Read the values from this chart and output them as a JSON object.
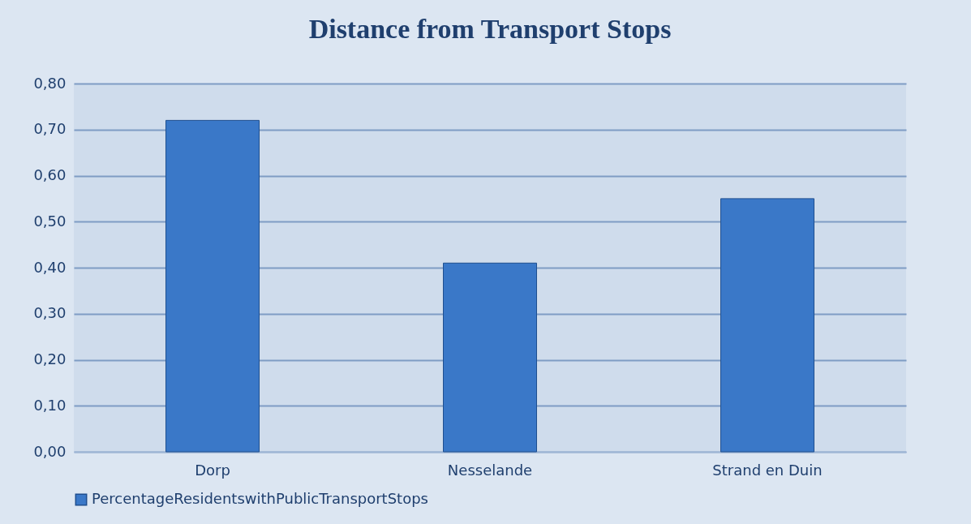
{
  "chart_data": {
    "type": "bar",
    "title": "Distance from Transport Stops",
    "categories": [
      "Dorp",
      "Nesselande",
      "Strand en Duin"
    ],
    "series": [
      {
        "name": "PercentageResidentswithPublicTransportStops",
        "color": "#3a78c8",
        "values": [
          0.72,
          0.41,
          0.55
        ]
      }
    ],
    "ylim": [
      0,
      0.8
    ],
    "yticks": [
      {
        "value": 0,
        "label": "0,00"
      },
      {
        "value": 0.1,
        "label": "0,10"
      },
      {
        "value": 0.2,
        "label": "0,20"
      },
      {
        "value": 0.3,
        "label": "0,30"
      },
      {
        "value": 0.4,
        "label": "0,40"
      },
      {
        "value": 0.5,
        "label": "0,50"
      },
      {
        "value": 0.6,
        "label": "0,60"
      },
      {
        "value": 0.7,
        "label": "0,70"
      },
      {
        "value": 0.8,
        "label": "0,80"
      }
    ],
    "grid": "y",
    "legend": "bottom"
  }
}
